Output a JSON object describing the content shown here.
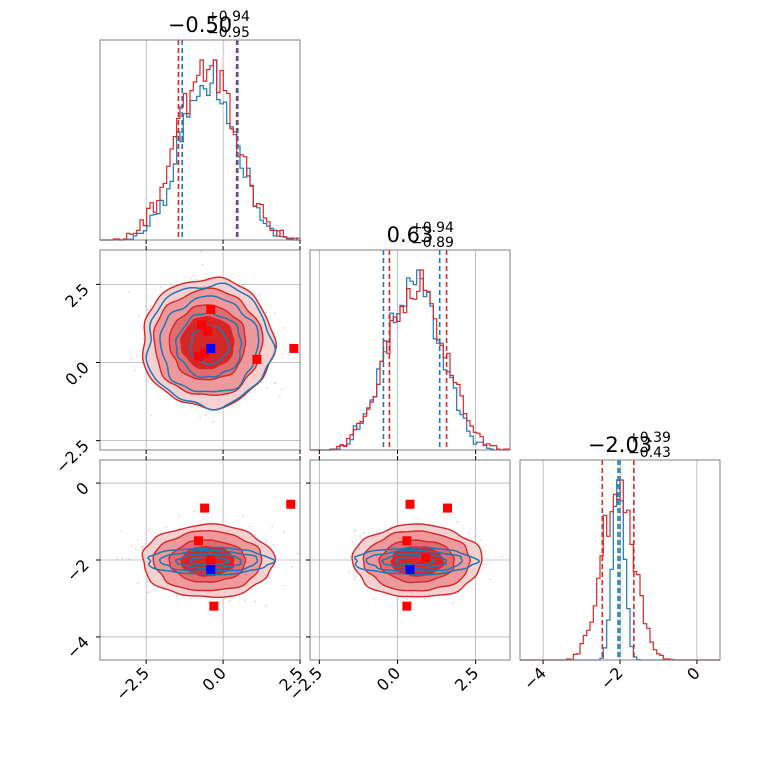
{
  "colors": {
    "series_a": "#d62728",
    "series_b": "#1f77b4",
    "marker_red": "#ff0000",
    "marker_blue": "#0000ff",
    "frame": "#808080",
    "grid": "#b0b0b0"
  },
  "chart_data": {
    "type": "corner",
    "grid": true,
    "parameters": [
      {
        "title": {
          "main": "−0.50",
          "plus": "+0.94",
          "minus": "−0.95"
        },
        "median": -0.5,
        "lower": -1.45,
        "upper": 0.44,
        "median_b": -0.45,
        "lower_b": -1.33,
        "upper_b": 0.48,
        "range": [
          -4.0,
          2.5
        ],
        "ticks": [
          -2.5,
          0.0,
          2.5
        ],
        "tick_labels": [
          "−2.5",
          "0.0",
          "2.5"
        ]
      },
      {
        "title": {
          "main": "0.63",
          "plus": "+0.94",
          "minus": "−0.89"
        },
        "median": 0.63,
        "lower": -0.26,
        "upper": 1.57,
        "median_b": 0.55,
        "lower_b": -0.45,
        "upper_b": 1.35,
        "range": [
          -2.8,
          3.6
        ],
        "ticks": [
          -2.5,
          0.0,
          2.5
        ],
        "tick_labels": [
          "−2.5",
          "0.0",
          "2.5"
        ],
        "ylim": [
          -2.8,
          3.6
        ],
        "y_tick_labels": [
          "−2.5",
          "0.0",
          "2.5"
        ]
      },
      {
        "title": {
          "main": "−2.03",
          "plus": "+0.39",
          "minus": "−0.43"
        },
        "median": -2.03,
        "lower": -2.46,
        "upper": -1.64,
        "median_b": -2.03,
        "lower_b": -2.05,
        "upper_b": -2.0,
        "range": [
          -4.6,
          0.6
        ],
        "ticks": [
          -4,
          -2,
          0
        ],
        "tick_labels": [
          "−4",
          "−2",
          "0"
        ],
        "ylim": [
          -4.6,
          0.6
        ],
        "y_tick_labels": [
          "0",
          "−2",
          "−4"
        ]
      }
    ],
    "series": [
      {
        "name": "",
        "color": "#d62728",
        "sigma": [
          0.95,
          0.92,
          0.42
        ],
        "center": [
          -0.5,
          0.63,
          -2.03
        ]
      },
      {
        "name": "",
        "color": "#1f77b4",
        "sigma": [
          0.88,
          0.85,
          0.15
        ],
        "center": [
          -0.45,
          0.55,
          -2.03
        ]
      }
    ],
    "markers": {
      "p0_p1": {
        "red": [
          [
            -0.4,
            1.7
          ],
          [
            -0.7,
            1.2
          ],
          [
            -0.5,
            1.0
          ],
          [
            -0.6,
            0.3
          ],
          [
            -0.8,
            0.2
          ],
          [
            1.1,
            0.1
          ],
          [
            2.3,
            0.45
          ]
        ],
        "blue": [
          [
            -0.4,
            0.45
          ]
        ]
      },
      "p0_p2": {
        "red": [
          [
            -0.6,
            -0.65
          ],
          [
            2.2,
            -0.55
          ],
          [
            -0.8,
            -1.5
          ],
          [
            -0.4,
            -2.0
          ],
          [
            -0.3,
            -3.2
          ]
        ],
        "blue": [
          [
            -0.4,
            -2.25
          ]
        ]
      },
      "p1_p2": {
        "red": [
          [
            0.4,
            -0.55
          ],
          [
            1.6,
            -0.65
          ],
          [
            0.3,
            -1.5
          ],
          [
            0.9,
            -1.95
          ],
          [
            0.3,
            -3.2
          ]
        ],
        "blue": [
          [
            0.4,
            -2.25
          ]
        ]
      }
    }
  }
}
